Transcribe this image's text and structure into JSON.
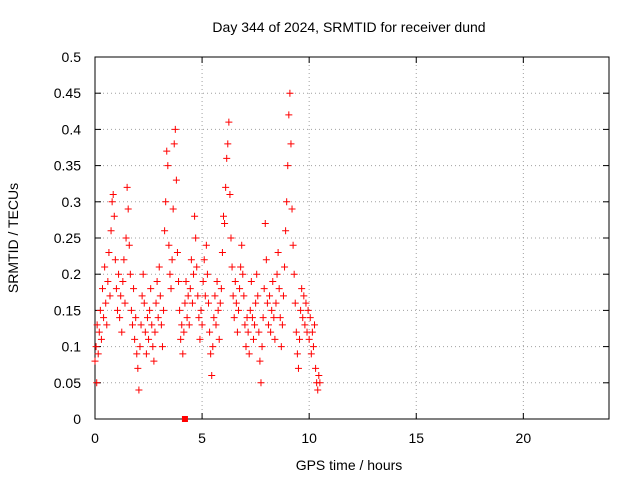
{
  "chart_data": {
    "type": "scatter",
    "title": "Day 344 of 2024, SRMTID for receiver dund",
    "xlabel": "GPS time / hours",
    "ylabel": "SRMTID / TECUs",
    "xlim": [
      0,
      24
    ],
    "ylim": [
      0,
      0.5
    ],
    "xticks": [
      0,
      5,
      10,
      15,
      20
    ],
    "yticks": [
      0,
      0.05,
      0.1,
      0.15,
      0.2,
      0.25,
      0.3,
      0.35,
      0.4,
      0.45,
      0.5
    ],
    "xtick_labels": [
      "0",
      "5",
      "10",
      "15",
      "20"
    ],
    "ytick_labels": [
      "0",
      "0.05",
      "0.1",
      "0.15",
      "0.2",
      "0.25",
      "0.3",
      "0.35",
      "0.4",
      "0.45",
      "0.5"
    ],
    "grid": true,
    "marker": "+",
    "color": "#ff0000",
    "zero_marker": {
      "x": 4.2,
      "y": 0
    },
    "series": [
      {
        "name": "SRMTID",
        "points": [
          [
            0.0,
            0.08
          ],
          [
            0.05,
            0.1
          ],
          [
            0.08,
            0.05
          ],
          [
            0.1,
            0.13
          ],
          [
            0.15,
            0.09
          ],
          [
            0.2,
            0.12
          ],
          [
            0.25,
            0.15
          ],
          [
            0.3,
            0.11
          ],
          [
            0.35,
            0.18
          ],
          [
            0.4,
            0.14
          ],
          [
            0.45,
            0.21
          ],
          [
            0.5,
            0.16
          ],
          [
            0.55,
            0.13
          ],
          [
            0.6,
            0.19
          ],
          [
            0.65,
            0.23
          ],
          [
            0.7,
            0.17
          ],
          [
            0.75,
            0.26
          ],
          [
            0.8,
            0.3
          ],
          [
            0.85,
            0.31
          ],
          [
            0.9,
            0.28
          ],
          [
            0.95,
            0.22
          ],
          [
            1.0,
            0.18
          ],
          [
            1.05,
            0.15
          ],
          [
            1.1,
            0.2
          ],
          [
            1.15,
            0.14
          ],
          [
            1.2,
            0.17
          ],
          [
            1.25,
            0.12
          ],
          [
            1.3,
            0.19
          ],
          [
            1.35,
            0.22
          ],
          [
            1.4,
            0.16
          ],
          [
            1.45,
            0.25
          ],
          [
            1.5,
            0.32
          ],
          [
            1.55,
            0.29
          ],
          [
            1.6,
            0.24
          ],
          [
            1.65,
            0.2
          ],
          [
            1.7,
            0.15
          ],
          [
            1.75,
            0.13
          ],
          [
            1.8,
            0.18
          ],
          [
            1.85,
            0.11
          ],
          [
            1.9,
            0.14
          ],
          [
            1.95,
            0.09
          ],
          [
            2.0,
            0.07
          ],
          [
            2.05,
            0.04
          ],
          [
            2.1,
            0.1
          ],
          [
            2.15,
            0.13
          ],
          [
            2.2,
            0.17
          ],
          [
            2.25,
            0.2
          ],
          [
            2.3,
            0.16
          ],
          [
            2.35,
            0.12
          ],
          [
            2.4,
            0.09
          ],
          [
            2.45,
            0.14
          ],
          [
            2.5,
            0.11
          ],
          [
            2.55,
            0.15
          ],
          [
            2.6,
            0.18
          ],
          [
            2.65,
            0.13
          ],
          [
            2.7,
            0.1
          ],
          [
            2.75,
            0.08
          ],
          [
            2.8,
            0.12
          ],
          [
            2.85,
            0.16
          ],
          [
            2.9,
            0.19
          ],
          [
            2.95,
            0.14
          ],
          [
            3.0,
            0.21
          ],
          [
            3.05,
            0.17
          ],
          [
            3.1,
            0.13
          ],
          [
            3.15,
            0.1
          ],
          [
            3.2,
            0.15
          ],
          [
            3.25,
            0.26
          ],
          [
            3.3,
            0.3
          ],
          [
            3.35,
            0.37
          ],
          [
            3.4,
            0.35
          ],
          [
            3.45,
            0.24
          ],
          [
            3.5,
            0.2
          ],
          [
            3.55,
            0.18
          ],
          [
            3.6,
            0.22
          ],
          [
            3.65,
            0.29
          ],
          [
            3.7,
            0.38
          ],
          [
            3.75,
            0.4
          ],
          [
            3.8,
            0.33
          ],
          [
            3.85,
            0.23
          ],
          [
            3.9,
            0.19
          ],
          [
            3.95,
            0.15
          ],
          [
            4.0,
            0.11
          ],
          [
            4.05,
            0.13
          ],
          [
            4.1,
            0.09
          ],
          [
            4.15,
            0.12
          ],
          [
            4.2,
            0.16
          ],
          [
            4.25,
            0.19
          ],
          [
            4.3,
            0.14
          ],
          [
            4.35,
            0.17
          ],
          [
            4.4,
            0.13
          ],
          [
            4.45,
            0.18
          ],
          [
            4.5,
            0.22
          ],
          [
            4.55,
            0.16
          ],
          [
            4.6,
            0.2
          ],
          [
            4.65,
            0.28
          ],
          [
            4.7,
            0.25
          ],
          [
            4.75,
            0.21
          ],
          [
            4.8,
            0.17
          ],
          [
            4.85,
            0.14
          ],
          [
            4.9,
            0.11
          ],
          [
            4.95,
            0.15
          ],
          [
            5.0,
            0.13
          ],
          [
            5.05,
            0.19
          ],
          [
            5.1,
            0.22
          ],
          [
            5.15,
            0.17
          ],
          [
            5.2,
            0.24
          ],
          [
            5.25,
            0.2
          ],
          [
            5.3,
            0.16
          ],
          [
            5.35,
            0.12
          ],
          [
            5.4,
            0.09
          ],
          [
            5.45,
            0.06
          ],
          [
            5.5,
            0.1
          ],
          [
            5.55,
            0.14
          ],
          [
            5.6,
            0.17
          ],
          [
            5.65,
            0.13
          ],
          [
            5.7,
            0.19
          ],
          [
            5.75,
            0.15
          ],
          [
            5.8,
            0.11
          ],
          [
            5.85,
            0.16
          ],
          [
            5.9,
            0.18
          ],
          [
            5.95,
            0.23
          ],
          [
            6.0,
            0.28
          ],
          [
            6.05,
            0.27
          ],
          [
            6.1,
            0.32
          ],
          [
            6.15,
            0.36
          ],
          [
            6.2,
            0.38
          ],
          [
            6.25,
            0.41
          ],
          [
            6.3,
            0.31
          ],
          [
            6.35,
            0.25
          ],
          [
            6.4,
            0.21
          ],
          [
            6.45,
            0.17
          ],
          [
            6.5,
            0.14
          ],
          [
            6.55,
            0.19
          ],
          [
            6.6,
            0.16
          ],
          [
            6.65,
            0.12
          ],
          [
            6.7,
            0.15
          ],
          [
            6.75,
            0.18
          ],
          [
            6.8,
            0.21
          ],
          [
            6.85,
            0.24
          ],
          [
            6.9,
            0.2
          ],
          [
            6.95,
            0.17
          ],
          [
            7.0,
            0.13
          ],
          [
            7.05,
            0.1
          ],
          [
            7.1,
            0.14
          ],
          [
            7.15,
            0.12
          ],
          [
            7.2,
            0.09
          ],
          [
            7.25,
            0.15
          ],
          [
            7.3,
            0.19
          ],
          [
            7.35,
            0.14
          ],
          [
            7.4,
            0.11
          ],
          [
            7.45,
            0.13
          ],
          [
            7.5,
            0.16
          ],
          [
            7.55,
            0.2
          ],
          [
            7.6,
            0.17
          ],
          [
            7.65,
            0.12
          ],
          [
            7.7,
            0.08
          ],
          [
            7.75,
            0.05
          ],
          [
            7.8,
            0.1
          ],
          [
            7.85,
            0.14
          ],
          [
            7.9,
            0.18
          ],
          [
            7.95,
            0.27
          ],
          [
            8.0,
            0.22
          ],
          [
            8.05,
            0.16
          ],
          [
            8.1,
            0.13
          ],
          [
            8.15,
            0.17
          ],
          [
            8.2,
            0.12
          ],
          [
            8.25,
            0.15
          ],
          [
            8.3,
            0.19
          ],
          [
            8.35,
            0.14
          ],
          [
            8.4,
            0.11
          ],
          [
            8.45,
            0.16
          ],
          [
            8.5,
            0.2
          ],
          [
            8.55,
            0.23
          ],
          [
            8.6,
            0.18
          ],
          [
            8.65,
            0.14
          ],
          [
            8.7,
            0.1
          ],
          [
            8.75,
            0.13
          ],
          [
            8.8,
            0.17
          ],
          [
            8.85,
            0.21
          ],
          [
            8.9,
            0.26
          ],
          [
            8.95,
            0.3
          ],
          [
            9.0,
            0.35
          ],
          [
            9.05,
            0.42
          ],
          [
            9.1,
            0.45
          ],
          [
            9.15,
            0.38
          ],
          [
            9.2,
            0.29
          ],
          [
            9.25,
            0.24
          ],
          [
            9.3,
            0.2
          ],
          [
            9.35,
            0.16
          ],
          [
            9.4,
            0.12
          ],
          [
            9.45,
            0.09
          ],
          [
            9.5,
            0.07
          ],
          [
            9.55,
            0.11
          ],
          [
            9.6,
            0.15
          ],
          [
            9.65,
            0.18
          ],
          [
            9.7,
            0.14
          ],
          [
            9.75,
            0.17
          ],
          [
            9.8,
            0.13
          ],
          [
            9.85,
            0.16
          ],
          [
            9.9,
            0.12
          ],
          [
            9.95,
            0.15
          ],
          [
            10.0,
            0.11
          ],
          [
            10.05,
            0.14
          ],
          [
            10.1,
            0.09
          ],
          [
            10.15,
            0.12
          ],
          [
            10.2,
            0.1
          ],
          [
            10.25,
            0.13
          ],
          [
            10.3,
            0.07
          ],
          [
            10.35,
            0.05
          ],
          [
            10.4,
            0.04
          ],
          [
            10.45,
            0.06
          ],
          [
            10.5,
            0.05
          ]
        ]
      }
    ]
  }
}
